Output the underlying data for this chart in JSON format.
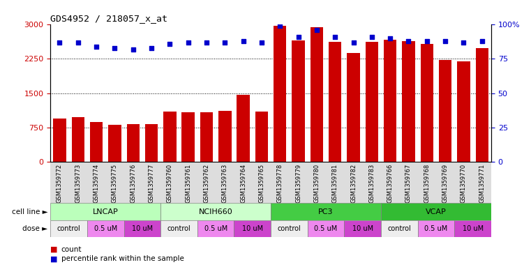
{
  "title": "GDS4952 / 218057_x_at",
  "samples": [
    "GSM1359772",
    "GSM1359773",
    "GSM1359774",
    "GSM1359775",
    "GSM1359776",
    "GSM1359777",
    "GSM1359760",
    "GSM1359761",
    "GSM1359762",
    "GSM1359763",
    "GSM1359764",
    "GSM1359765",
    "GSM1359778",
    "GSM1359779",
    "GSM1359780",
    "GSM1359781",
    "GSM1359782",
    "GSM1359783",
    "GSM1359766",
    "GSM1359767",
    "GSM1359768",
    "GSM1359769",
    "GSM1359770",
    "GSM1359771"
  ],
  "counts": [
    950,
    980,
    870,
    810,
    820,
    830,
    1100,
    1080,
    1080,
    1120,
    1460,
    1100,
    2980,
    2650,
    2940,
    2620,
    2380,
    2620,
    2670,
    2640,
    2580,
    2230,
    2190,
    2480
  ],
  "percentile_ranks": [
    87,
    87,
    84,
    83,
    82,
    83,
    86,
    87,
    87,
    87,
    88,
    87,
    99,
    91,
    96,
    91,
    87,
    91,
    90,
    88,
    88,
    88,
    87,
    88
  ],
  "cell_lines": [
    {
      "label": "LNCAP",
      "start": 0,
      "end": 6
    },
    {
      "label": "NCIH660",
      "start": 6,
      "end": 12
    },
    {
      "label": "PC3",
      "start": 12,
      "end": 18
    },
    {
      "label": "VCAP",
      "start": 18,
      "end": 24
    }
  ],
  "cell_line_colors": {
    "LNCAP": "#bbffbb",
    "NCIH660": "#ccffcc",
    "PC3": "#44cc44",
    "VCAP": "#33bb33"
  },
  "dose_groups": [
    {
      "label": "control",
      "start": 0,
      "end": 2
    },
    {
      "label": "0.5 uM",
      "start": 2,
      "end": 4
    },
    {
      "label": "10 uM",
      "start": 4,
      "end": 6
    },
    {
      "label": "control",
      "start": 6,
      "end": 8
    },
    {
      "label": "0.5 uM",
      "start": 8,
      "end": 10
    },
    {
      "label": "10 uM",
      "start": 10,
      "end": 12
    },
    {
      "label": "control",
      "start": 12,
      "end": 14
    },
    {
      "label": "0.5 uM",
      "start": 14,
      "end": 16
    },
    {
      "label": "10 uM",
      "start": 16,
      "end": 18
    },
    {
      "label": "control",
      "start": 18,
      "end": 20
    },
    {
      "label": "0.5 uM",
      "start": 20,
      "end": 22
    },
    {
      "label": "10 uM",
      "start": 22,
      "end": 24
    }
  ],
  "dose_colors": {
    "control": "#eeeeee",
    "0.5 uM": "#ee88ee",
    "10 uM": "#cc44cc"
  },
  "bar_color": "#cc0000",
  "dot_color": "#0000cc",
  "left_ylim": [
    0,
    3000
  ],
  "left_yticks": [
    0,
    750,
    1500,
    2250,
    3000
  ],
  "right_ylim": [
    0,
    100
  ],
  "right_yticks": [
    0,
    25,
    50,
    75,
    100
  ],
  "background_color": "#ffffff",
  "sample_bg_color": "#dddddd"
}
